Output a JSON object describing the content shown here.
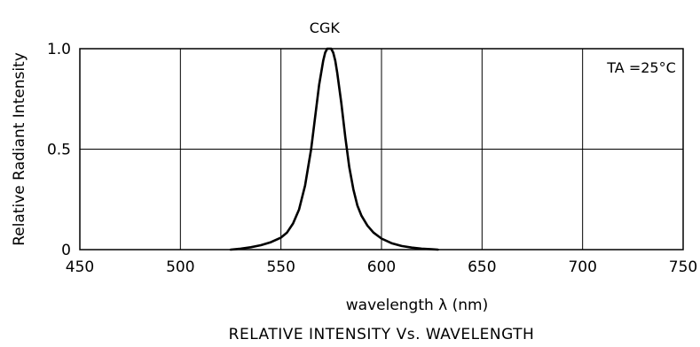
{
  "chart_data": {
    "type": "line",
    "title": "RELATIVE INTENSITY Vs. WAVELENGTH",
    "xlabel": "wavelength λ (nm)",
    "ylabel": "Relative Radiant Intensity",
    "xlim": [
      450,
      750
    ],
    "ylim": [
      0,
      1.0
    ],
    "x_ticks": [
      450,
      500,
      550,
      600,
      650,
      700,
      750
    ],
    "x_tick_labels": [
      "450",
      "500",
      "550",
      "600",
      "650",
      "700",
      "750"
    ],
    "y_ticks": [
      0,
      0.5,
      1.0
    ],
    "y_tick_labels": [
      "0",
      "0.5",
      "1.0"
    ],
    "grid": true,
    "annotation": "TA =25°C",
    "series": [
      {
        "name": "CGK",
        "color": "#000000",
        "x": [
          525,
          530,
          535,
          540,
          545,
          550,
          553,
          556,
          559,
          562,
          565,
          567,
          569,
          571,
          572,
          573,
          574,
          575,
          576,
          577,
          578,
          580,
          582,
          584,
          586,
          588,
          590,
          593,
          596,
          600,
          605,
          610,
          615,
          620,
          625,
          628
        ],
        "y": [
          0.0,
          0.005,
          0.012,
          0.022,
          0.037,
          0.06,
          0.085,
          0.13,
          0.2,
          0.32,
          0.5,
          0.66,
          0.82,
          0.94,
          0.98,
          1.0,
          1.0,
          1.0,
          0.98,
          0.94,
          0.88,
          0.73,
          0.56,
          0.41,
          0.3,
          0.22,
          0.17,
          0.12,
          0.085,
          0.055,
          0.032,
          0.018,
          0.01,
          0.005,
          0.002,
          0.0
        ]
      }
    ]
  }
}
